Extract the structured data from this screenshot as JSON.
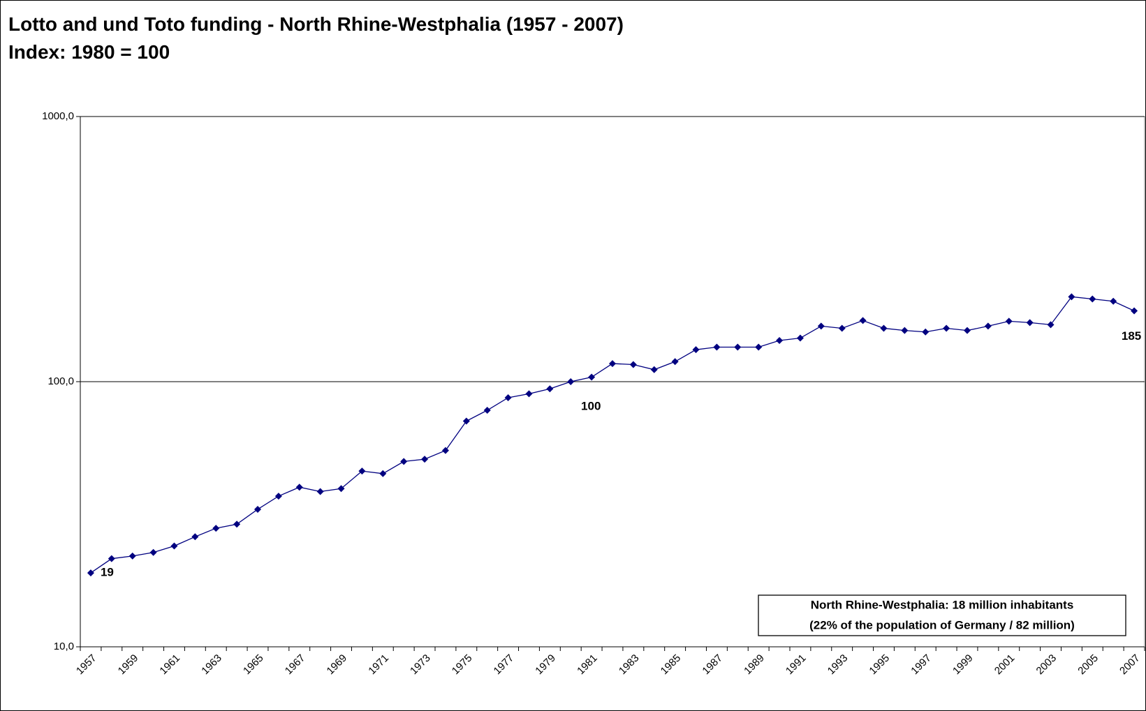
{
  "chart_data": {
    "type": "line",
    "title": "Lotto and und Toto funding - North Rhine-Westphalia (1957 - 2007)",
    "subtitle": "Index: 1980 = 100",
    "annotation": [
      "North Rhine-Westphalia: 18 million inhabitants",
      "(22% of the population of Germany / 82 million)"
    ],
    "log_scale": true,
    "grid": true,
    "categories": [
      "1957",
      null,
      "1959",
      null,
      "1961",
      null,
      "1963",
      null,
      "1965",
      null,
      "1967",
      null,
      "1969",
      null,
      "1971",
      null,
      "1973",
      null,
      "1975",
      null,
      "1977",
      null,
      "1979",
      null,
      "1981",
      null,
      "1983",
      null,
      "1985",
      null,
      "1987",
      null,
      "1989",
      null,
      "1991",
      null,
      "1993",
      null,
      "1995",
      null,
      "1997",
      null,
      "1999",
      null,
      "2001",
      null,
      "2003",
      null,
      "2005",
      null,
      "2007"
    ],
    "series": [
      {
        "name": "Index",
        "color": "#000080",
        "values": [
          19,
          21.5,
          22,
          22.7,
          24,
          26,
          28,
          29,
          33,
          37,
          40,
          38.5,
          39.5,
          46,
          45,
          50,
          51,
          55,
          71,
          78,
          87,
          90,
          94,
          100,
          104,
          117,
          116,
          111,
          119,
          132,
          135,
          135,
          135,
          143,
          146,
          162,
          159,
          170,
          159,
          156,
          154,
          159,
          156,
          162,
          169,
          167,
          164,
          209,
          205,
          201,
          185
        ],
        "value_labels": [
          "19",
          null,
          null,
          null,
          null,
          null,
          null,
          null,
          null,
          null,
          null,
          null,
          null,
          null,
          null,
          null,
          null,
          null,
          null,
          null,
          null,
          null,
          null,
          "100",
          null,
          null,
          null,
          null,
          null,
          null,
          null,
          null,
          null,
          null,
          null,
          null,
          null,
          null,
          null,
          null,
          null,
          null,
          null,
          null,
          null,
          null,
          null,
          null,
          null,
          null,
          "185"
        ]
      }
    ],
    "ylim": [
      10,
      1000
    ],
    "yticks": [
      {
        "value": 10,
        "label": "10,0"
      },
      {
        "value": 100,
        "label": "100,0"
      },
      {
        "value": 1000,
        "label": "1000,0"
      }
    ]
  }
}
